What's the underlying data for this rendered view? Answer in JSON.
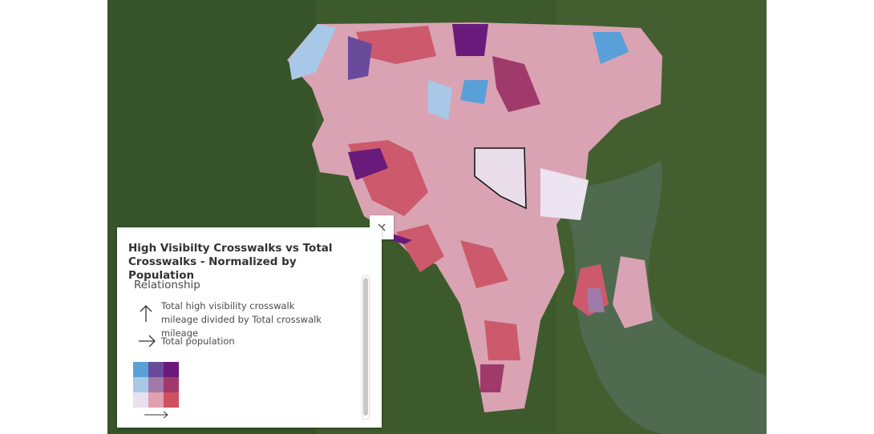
{
  "legend": {
    "title": "High Visibilty Crosswalks vs Total Crosswalks - Normalized by Population",
    "section": "Relationship",
    "y_axis_label": "Total high visibility crosswalk mileage divided by Total crosswalk mileage",
    "x_axis_label": "Total population"
  }
}
